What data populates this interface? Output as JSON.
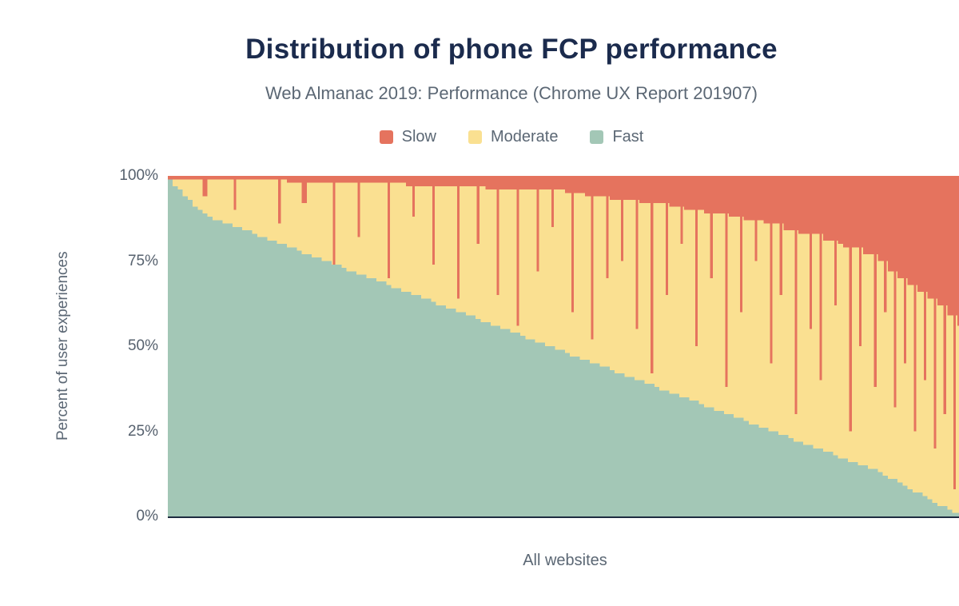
{
  "chart_data": {
    "type": "bar",
    "stacked": true,
    "title": "Distribution of phone FCP performance",
    "subtitle": "Web Almanac 2019: Performance (Chrome UX Report 201907)",
    "xlabel": "All websites",
    "ylabel": "Percent of user experiences",
    "y_ticks": [
      "100%",
      "75%",
      "50%",
      "25%",
      "0%"
    ],
    "ylim": [
      0,
      100
    ],
    "unit": "%",
    "legend_position": "top",
    "x_description": "Individual websites sorted by percent of fast experiences, descending (sampled to 160 bars)",
    "series_note": "moderate = 100 - fast - slow for each bar",
    "axis_color": "#1e2b40",
    "legend": [
      {
        "label": "Slow",
        "color": "#e5735e"
      },
      {
        "label": "Moderate",
        "color": "#fae091"
      },
      {
        "label": "Fast",
        "color": "#a3c7b6"
      }
    ],
    "fast": [
      99,
      97,
      96,
      94,
      93,
      91,
      90,
      89,
      88,
      87,
      87,
      86,
      86,
      85,
      85,
      84,
      84,
      83,
      82,
      82,
      81,
      81,
      80,
      80,
      79,
      79,
      78,
      77,
      77,
      76,
      76,
      75,
      75,
      74,
      74,
      73,
      72,
      72,
      71,
      71,
      70,
      70,
      69,
      69,
      68,
      67,
      67,
      66,
      66,
      65,
      65,
      64,
      64,
      63,
      62,
      62,
      61,
      61,
      60,
      60,
      59,
      59,
      58,
      57,
      57,
      56,
      56,
      55,
      55,
      54,
      54,
      53,
      52,
      52,
      51,
      51,
      50,
      50,
      49,
      49,
      48,
      47,
      47,
      46,
      46,
      45,
      45,
      44,
      44,
      43,
      42,
      42,
      41,
      41,
      40,
      40,
      39,
      39,
      38,
      37,
      37,
      36,
      36,
      35,
      35,
      34,
      34,
      33,
      32,
      32,
      31,
      31,
      30,
      30,
      29,
      29,
      28,
      27,
      27,
      26,
      26,
      25,
      25,
      24,
      24,
      23,
      22,
      22,
      21,
      21,
      20,
      20,
      19,
      19,
      18,
      17,
      17,
      16,
      16,
      15,
      15,
      14,
      14,
      13,
      12,
      11,
      11,
      10,
      9,
      8,
      7,
      7,
      6,
      5,
      4,
      3,
      3,
      2,
      1,
      1
    ],
    "slow": [
      1,
      1,
      1,
      1,
      1,
      1,
      1,
      6,
      1,
      1,
      1,
      1,
      1,
      10,
      1,
      1,
      1,
      1,
      1,
      1,
      1,
      1,
      14,
      1,
      2,
      2,
      2,
      8,
      2,
      2,
      2,
      2,
      2,
      26,
      2,
      2,
      2,
      2,
      18,
      2,
      2,
      2,
      2,
      2,
      30,
      2,
      2,
      2,
      3,
      12,
      3,
      3,
      3,
      26,
      3,
      3,
      3,
      3,
      36,
      3,
      3,
      3,
      20,
      3,
      4,
      4,
      35,
      4,
      4,
      4,
      44,
      4,
      4,
      4,
      28,
      4,
      4,
      15,
      4,
      4,
      5,
      40,
      5,
      5,
      6,
      48,
      6,
      6,
      30,
      7,
      7,
      25,
      7,
      7,
      45,
      8,
      8,
      58,
      8,
      8,
      35,
      9,
      9,
      20,
      10,
      10,
      50,
      10,
      11,
      30,
      11,
      11,
      62,
      12,
      12,
      40,
      13,
      13,
      25,
      13,
      14,
      55,
      14,
      35,
      16,
      16,
      70,
      17,
      17,
      45,
      17,
      60,
      19,
      19,
      38,
      20,
      21,
      75,
      21,
      50,
      23,
      23,
      62,
      25,
      40,
      28,
      68,
      30,
      55,
      32,
      75,
      34,
      60,
      36,
      80,
      38,
      70,
      41,
      92,
      44
    ]
  }
}
